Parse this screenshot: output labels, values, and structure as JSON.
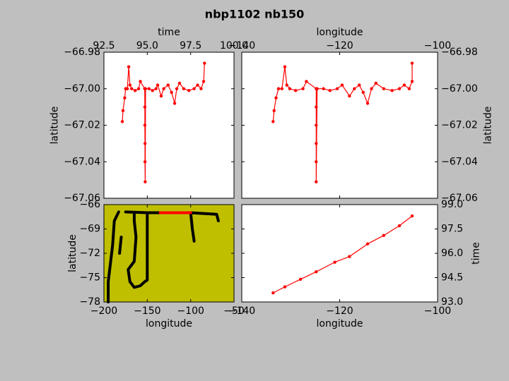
{
  "title": "nbp1102 nb150",
  "chart_data": [
    {
      "type": "line",
      "xlabel": "time",
      "ylabel": "latitude",
      "xaxis": "top",
      "yaxis": "left",
      "markers": true,
      "xlim": [
        92.5,
        100.0
      ],
      "ylim": [
        -67.06,
        -66.98
      ],
      "xticks": [
        92.5,
        {
          "value": 95.0,
          "label": "95.0"
        },
        97.5,
        {
          "value": 100.0,
          "label": "100.0"
        }
      ],
      "yticks": [
        {
          "value": -67.06,
          "label": "−67.06"
        },
        {
          "value": -67.04,
          "label": "−67.04"
        },
        {
          "value": -67.02,
          "label": "−67.02"
        },
        {
          "value": -67.0,
          "label": "−67.00"
        },
        {
          "value": -66.98,
          "label": "−66.98"
        }
      ],
      "series": [
        {
          "color": "#ff0000",
          "x": [
            93.56,
            93.6,
            93.7,
            93.75,
            93.85,
            93.93,
            94.0,
            94.1,
            94.3,
            94.5,
            94.6,
            94.85,
            94.86,
            94.86,
            94.87,
            94.87,
            94.88,
            94.9,
            95.1,
            95.3,
            95.5,
            95.6,
            95.8,
            95.95,
            96.2,
            96.4,
            96.58,
            96.7,
            96.86,
            97.1,
            97.4,
            97.7,
            97.9,
            98.1,
            98.25,
            98.3
          ],
          "values": [
            -67.018,
            -67.012,
            -67.005,
            -67.0,
            -67.0,
            -66.988,
            -66.998,
            -67.0,
            -67.001,
            -67.0,
            -66.996,
            -67.0,
            -67.01,
            -67.02,
            -67.03,
            -67.04,
            -67.051,
            -67.0,
            -67.0,
            -67.001,
            -67.0,
            -66.998,
            -67.004,
            -67.0,
            -66.998,
            -67.002,
            -67.008,
            -67.0,
            -66.997,
            -67.0,
            -67.001,
            -67.0,
            -66.998,
            -67.0,
            -66.996,
            -66.986
          ]
        }
      ]
    },
    {
      "type": "line",
      "xlabel": "longitude",
      "ylabel": "latitude",
      "xaxis": "top",
      "yaxis": "right",
      "markers": true,
      "xlim": [
        -140,
        -100
      ],
      "ylim": [
        -67.06,
        -66.98
      ],
      "xticks": [
        {
          "value": -140,
          "label": "−140"
        },
        {
          "value": -120,
          "label": "−120"
        },
        {
          "value": -100,
          "label": "−100"
        }
      ],
      "yticks": [
        {
          "value": -67.06,
          "label": "−67.06"
        },
        {
          "value": -67.04,
          "label": "−67.04"
        },
        {
          "value": -67.02,
          "label": "−67.02"
        },
        {
          "value": -67.0,
          "label": "−67.00"
        },
        {
          "value": -66.98,
          "label": "−66.98"
        }
      ],
      "series": [
        {
          "color": "#ff0000",
          "x": [
            -133.6,
            -133.4,
            -133.0,
            -132.5,
            -131.8,
            -131.2,
            -130.8,
            -130.2,
            -129.0,
            -127.5,
            -126.8,
            -124.8,
            -124.8,
            -124.8,
            -124.8,
            -124.8,
            -124.8,
            -124.6,
            -123.3,
            -122.0,
            -120.5,
            -119.5,
            -118.0,
            -117.0,
            -116.0,
            -115.2,
            -114.3,
            -113.5,
            -112.6,
            -111.0,
            -109.3,
            -107.8,
            -106.8,
            -105.8,
            -105.2,
            -105.2
          ],
          "values": [
            -67.018,
            -67.012,
            -67.005,
            -67.0,
            -67.0,
            -66.988,
            -66.998,
            -67.0,
            -67.001,
            -67.0,
            -66.996,
            -67.0,
            -67.01,
            -67.02,
            -67.03,
            -67.04,
            -67.051,
            -67.0,
            -67.0,
            -67.001,
            -67.0,
            -66.998,
            -67.004,
            -67.0,
            -66.998,
            -67.002,
            -67.008,
            -67.0,
            -66.997,
            -67.0,
            -67.001,
            -67.0,
            -66.998,
            -67.0,
            -66.996,
            -66.986
          ]
        }
      ]
    },
    {
      "type": "line",
      "xlabel": "longitude",
      "ylabel": "latitude",
      "xaxis": "bottom",
      "yaxis": "left",
      "markers": false,
      "background": "#bfbf00",
      "xlim": [
        -200,
        -50
      ],
      "ylim": [
        -78,
        -66
      ],
      "xticks": [
        {
          "value": -200,
          "label": "−200"
        },
        {
          "value": -150,
          "label": "−150"
        },
        {
          "value": -100,
          "label": "−100"
        },
        {
          "value": -50,
          "label": "−50"
        }
      ],
      "yticks": [
        {
          "value": -78,
          "label": "−78"
        },
        {
          "value": -75,
          "label": "−75"
        },
        {
          "value": -72,
          "label": "−72"
        },
        {
          "value": -69,
          "label": "−69"
        },
        {
          "value": -66,
          "label": "−66"
        }
      ],
      "series": [
        {
          "color": "#000000",
          "x": [
            -175,
            -150,
            -100,
            -70,
            -68,
            null,
            -150,
            -150,
            -153,
            -158,
            -165,
            -170,
            -172,
            -165,
            -163,
            -165,
            -165,
            null,
            -195,
            -195,
            -190,
            -188,
            -183,
            null,
            -100,
            -98,
            -96,
            null,
            -180,
            -182
          ],
          "values": [
            -66.9,
            -67,
            -67,
            -67.2,
            -68,
            null,
            -67,
            -75.3,
            -75.5,
            -76,
            -76.2,
            -75.5,
            -74,
            -73,
            -70,
            -68,
            -67,
            null,
            -78,
            -75.5,
            -71,
            -68,
            -66.9,
            null,
            -67,
            -69,
            -70.5,
            null,
            -70,
            -72
          ]
        },
        {
          "color": "#ff0000",
          "x": [
            -135,
            -100
          ],
          "values": [
            -67,
            -67
          ]
        }
      ]
    },
    {
      "type": "line",
      "xlabel": "longitude",
      "ylabel": "time",
      "xaxis": "bottom",
      "yaxis": "right",
      "markers": true,
      "xlim": [
        -140,
        -100
      ],
      "ylim": [
        93.0,
        99.0
      ],
      "xticks": [
        {
          "value": -140,
          "label": "−140"
        },
        {
          "value": -120,
          "label": "−120"
        },
        {
          "value": -100,
          "label": "−100"
        }
      ],
      "yticks": [
        {
          "value": 93.0,
          "label": "93.0"
        },
        94.5,
        {
          "value": 96.0,
          "label": "96.0"
        },
        97.5,
        {
          "value": 99.0,
          "label": "99.0"
        }
      ],
      "series": [
        {
          "color": "#ff0000",
          "x": [
            -133.6,
            -131.2,
            -128.0,
            -124.8,
            -121.0,
            -118.0,
            -114.3,
            -111.0,
            -107.8,
            -105.2
          ],
          "values": [
            93.56,
            93.93,
            94.4,
            94.86,
            95.45,
            95.8,
            96.58,
            97.1,
            97.7,
            98.3
          ]
        }
      ]
    }
  ]
}
